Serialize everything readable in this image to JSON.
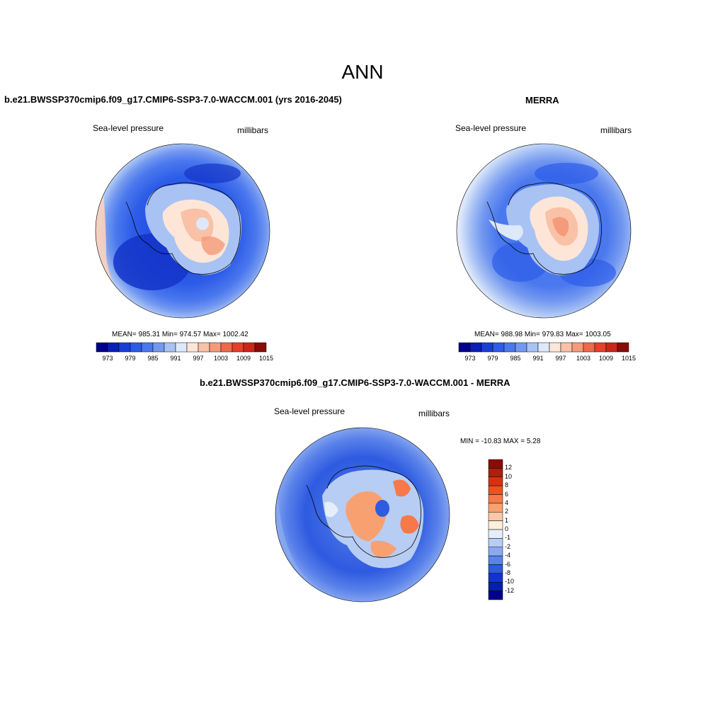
{
  "figure": {
    "title": "ANN"
  },
  "panels": [
    {
      "id": "model",
      "title": "b.e21.BWSSP370cmip6.f09_g17.CMIP6-SSP3-7.0-WACCM.001 (yrs 2016-2045)",
      "variable": "Sea-level pressure",
      "units": "millibars",
      "stats": "MEAN= 985.31  Min= 974.57  Max= 1002.42"
    },
    {
      "id": "obs",
      "title": "MERRA",
      "variable": "Sea-level pressure",
      "units": "millibars",
      "stats": "MEAN= 988.98  Min= 979.83  Max= 1003.05"
    },
    {
      "id": "diff",
      "title": "b.e21.BWSSP370cmip6.f09_g17.CMIP6-SSP3-7.0-WACCM.001 - MERRA",
      "variable": "Sea-level pressure",
      "units": "millibars",
      "stats": "MIN = -10.83 MAX =   5.28"
    }
  ],
  "colorbars": {
    "absolute": {
      "labels": [
        "973",
        "979",
        "985",
        "991",
        "997",
        "1003",
        "1009",
        "1015"
      ],
      "colors": [
        "#00008c",
        "#0a1fb4",
        "#1a3fd8",
        "#2d5ce8",
        "#4a78ee",
        "#7398f0",
        "#a8c2f4",
        "#dde8fb",
        "#fde6d8",
        "#f9c1a6",
        "#f59a7a",
        "#ee6a4a",
        "#e4402a",
        "#c8281a",
        "#8c0a08"
      ]
    },
    "difference": {
      "labels": [
        "12",
        "10",
        "8",
        "6",
        "4",
        "2",
        "1",
        "0",
        "-1",
        "-2",
        "-4",
        "-6",
        "-8",
        "-10",
        "-12"
      ],
      "colors": [
        "#8c0a08",
        "#b01e0c",
        "#d63212",
        "#f0501e",
        "#f77848",
        "#f9a070",
        "#fbc7a6",
        "#fdeede",
        "#e6eefb",
        "#b8cdf4",
        "#8aa9f0",
        "#5a82ea",
        "#2e5be0",
        "#1434c8",
        "#0620a8",
        "#00008c"
      ]
    }
  }
}
